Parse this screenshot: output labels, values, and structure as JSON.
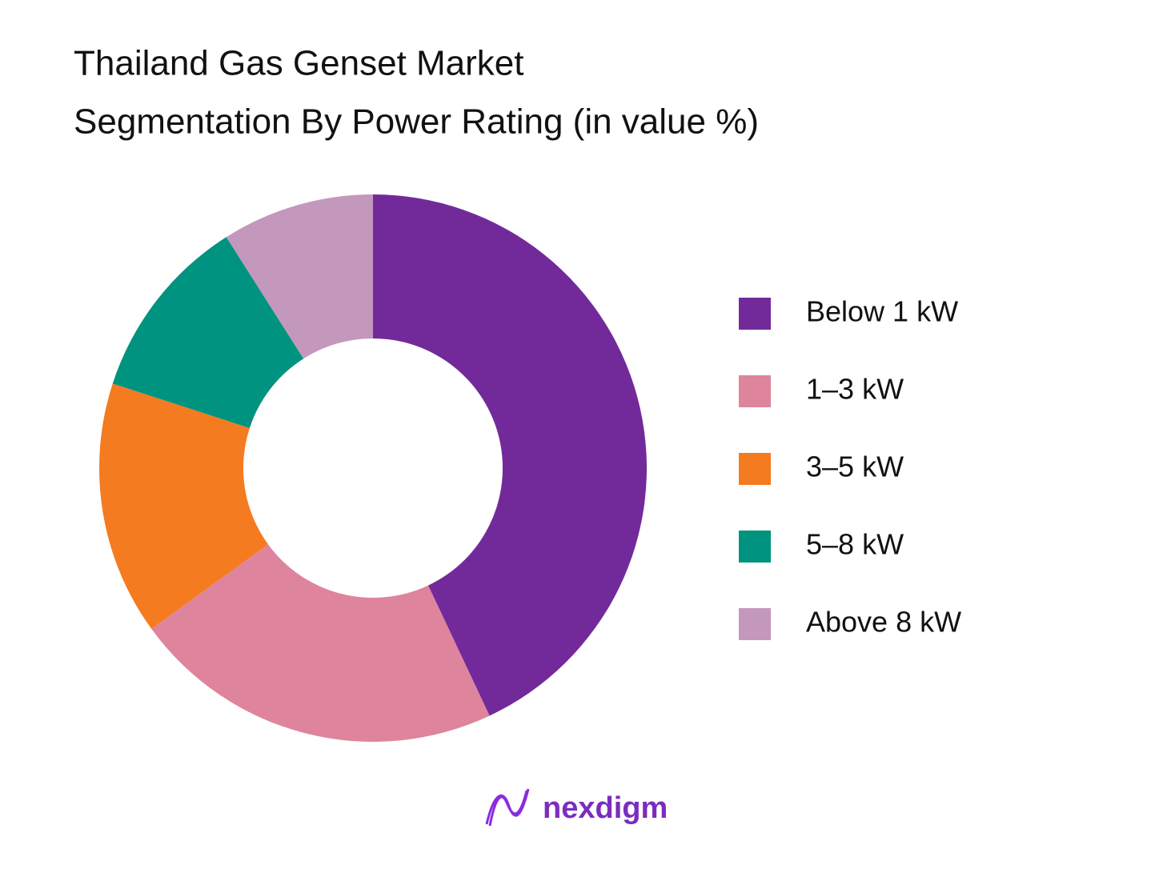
{
  "chart_data": {
    "type": "donut",
    "title": [
      "Thailand Gas Genset Market",
      "Segmentation By Power Rating (in value %)"
    ],
    "categories": [
      "Below 1 kW",
      "1–3 kW",
      "3–5 kW",
      "5–8 kW",
      "Above 8 kW"
    ],
    "values": [
      43,
      22,
      15,
      11,
      9
    ],
    "colors": [
      "#722a9a",
      "#de849c",
      "#f47b20",
      "#00937f",
      "#c497bd"
    ],
    "legend": "right"
  },
  "logo": {
    "text": "nexdigm"
  }
}
